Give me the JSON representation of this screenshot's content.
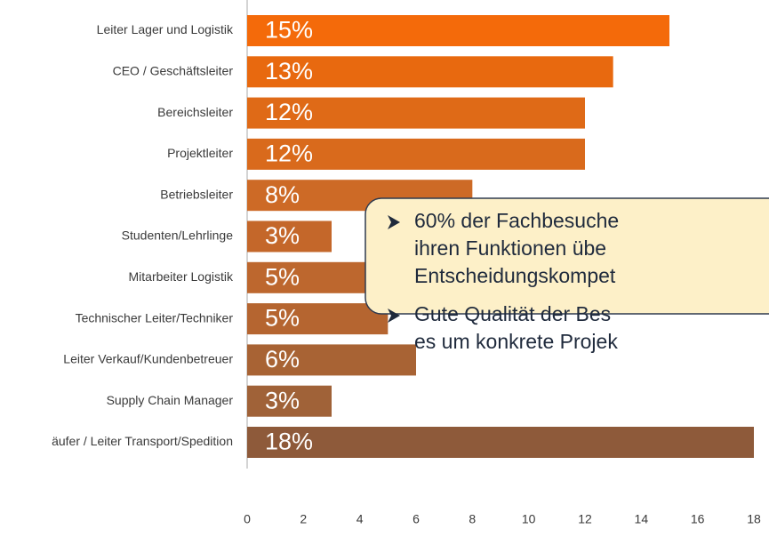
{
  "chart_data": {
    "type": "barh",
    "categories": [
      "Leiter Lager und Logistik",
      "CEO / Geschäftsleiter",
      "Bereichsleiter",
      "Projektleiter",
      "Betriebsleiter",
      "Studenten/Lehrlinge",
      "Mitarbeiter Logistik",
      "Technischer Leiter/Techniker",
      "Leiter Verkauf/Kundenbetreuer",
      "Supply Chain Manager",
      "äufer / Leiter Transport/Spedition"
    ],
    "values": [
      15,
      13,
      12,
      12,
      8,
      3,
      5,
      5,
      6,
      3,
      18
    ],
    "value_labels": [
      "15%",
      "13%",
      "12%",
      "12%",
      "8%",
      "3%",
      "5%",
      "5%",
      "6%",
      "3%",
      "18%"
    ],
    "colors": [
      "#f46a0a",
      "#e8690f",
      "#df6a17",
      "#d96a1c",
      "#cd6a26",
      "#c4672a",
      "#bd672e",
      "#b56530",
      "#a86334",
      "#a06238",
      "#8e5a3a"
    ],
    "xlim": [
      0,
      18
    ],
    "xticks": [
      0,
      2,
      4,
      6,
      8,
      10,
      12,
      14,
      16,
      18
    ]
  },
  "callout": {
    "bullets": [
      {
        "lines": [
          "60% der Fachbesuche",
          "ihren Funktionen übe",
          "Entscheidungskompet"
        ]
      },
      {
        "lines": [
          "Gute Qualität der Bes",
          "es um konkrete Projek"
        ]
      }
    ]
  }
}
